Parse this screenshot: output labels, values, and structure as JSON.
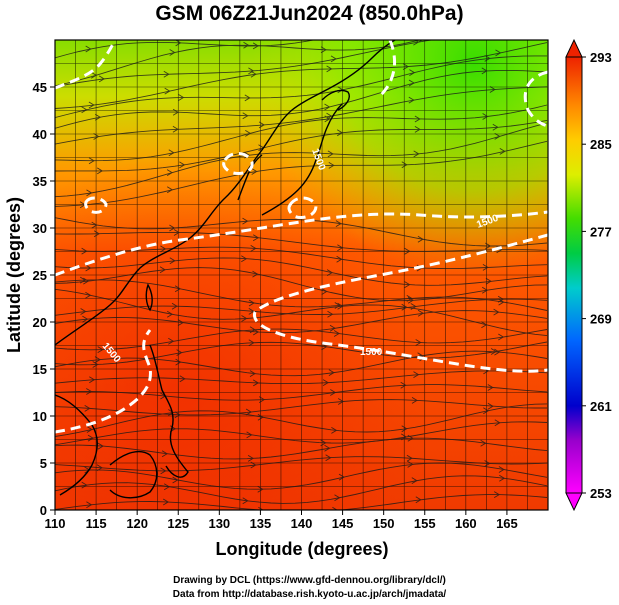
{
  "title": "GSM 06Z21Jun2024 (850.0hPa)",
  "x_axis": {
    "label": "Longitude (degrees)",
    "ticks": [
      "110",
      "115",
      "120",
      "125",
      "130",
      "135",
      "140",
      "145",
      "150",
      "155",
      "160",
      "165"
    ]
  },
  "y_axis": {
    "label": "Latitude  (degrees)",
    "ticks": [
      "0",
      "5",
      "10",
      "15",
      "20",
      "25",
      "30",
      "35",
      "40",
      "45"
    ]
  },
  "colorbar": {
    "ticks": [
      "253",
      "261",
      "269",
      "277",
      "285",
      "293"
    ],
    "colors": [
      "#ff00ff",
      "#0000cc",
      "#0080ff",
      "#00cccc",
      "#00cc44",
      "#66ee00",
      "#ddee00",
      "#ffcc00",
      "#ff8800",
      "#ff4400",
      "#ee2200"
    ]
  },
  "contour_labels": [
    "1500",
    "1500",
    "1500",
    "1500"
  ],
  "credits": {
    "line1": "Drawing by DCL (https://www.gfd-dennou.org/library/dcl/)",
    "line2": "Data from http://database.rish.kyoto-u.ac.jp/arch/jmadata/"
  }
}
